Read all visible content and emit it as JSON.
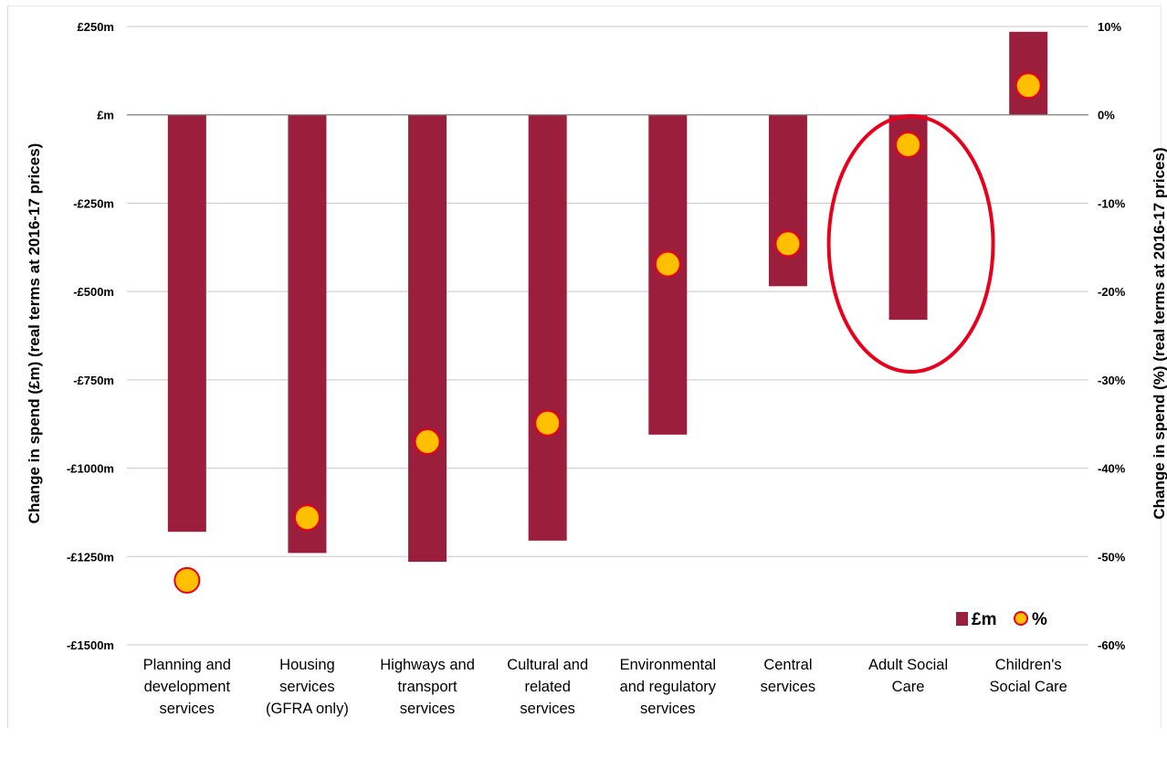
{
  "chart_data": {
    "type": "bar",
    "categories": [
      [
        "Planning and",
        "development",
        "services"
      ],
      [
        "Housing",
        "services",
        "(GFRA only)"
      ],
      [
        "Highways and",
        "transport",
        "services"
      ],
      [
        "Cultural and",
        "related",
        "services"
      ],
      [
        "Environmental",
        "and regulatory",
        "services"
      ],
      [
        "Central",
        "services"
      ],
      [
        "Adult Social",
        "Care"
      ],
      [
        "Children's",
        "Social Care"
      ]
    ],
    "series": [
      {
        "name": "£m",
        "axis": "left",
        "type": "bar",
        "color": "#9b1f3d",
        "values": [
          -1180,
          -1240,
          -1265,
          -1205,
          -905,
          -485,
          -580,
          235
        ]
      },
      {
        "name": "%",
        "axis": "right",
        "type": "scatter",
        "color": "#ffc000",
        "edge_color": "#e8001c",
        "values": [
          -52.7,
          -45.6,
          -37,
          -34.9,
          -16.9,
          -14.6,
          -3.4,
          3.3
        ]
      }
    ],
    "ylabel": "Change in spend (£m) (real terms at 2016-17 prices)",
    "y2label": "Change in spend (%) (real terms at 2016-17 prices)",
    "ylim": [
      -1500,
      250
    ],
    "y2lim": [
      -60,
      10
    ],
    "yticks": [
      {
        "v": 250,
        "label": "£250m"
      },
      {
        "v": 0,
        "label": "£m"
      },
      {
        "v": -250,
        "label": "-£250m"
      },
      {
        "v": -500,
        "label": "-£500m"
      },
      {
        "v": -750,
        "label": "-£750m"
      },
      {
        "v": -1000,
        "label": "-£1000m"
      },
      {
        "v": -1250,
        "label": "-£1250m"
      },
      {
        "v": -1500,
        "label": "-£1500m"
      }
    ],
    "y2ticks": [
      {
        "v": 10,
        "label": "10%"
      },
      {
        "v": 0,
        "label": "0%"
      },
      {
        "v": -10,
        "label": "-10%"
      },
      {
        "v": -20,
        "label": "-20%"
      },
      {
        "v": -30,
        "label": "-30%"
      },
      {
        "v": -40,
        "label": "-40%"
      },
      {
        "v": -50,
        "label": "-50%"
      },
      {
        "v": -60,
        "label": "-60%"
      }
    ],
    "grid": true,
    "legend": {
      "position": "bottom-right",
      "entries": [
        "£m",
        "%"
      ]
    },
    "annotation": {
      "type": "ellipse",
      "target_category_index": 6,
      "color": "#e8001c"
    }
  }
}
